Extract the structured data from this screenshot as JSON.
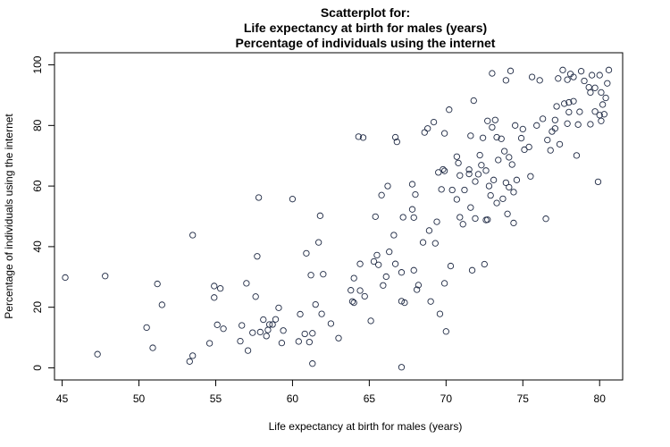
{
  "chart_data": {
    "type": "scatter",
    "title_lines": [
      "Scatterplot for:",
      "Life expectancy at birth for males (years)",
      "Percentage of individuals using the internet"
    ],
    "xlabel": "Life expectancy at birth for males (years)",
    "ylabel": "Percentage of individuals using the internet",
    "xlim": [
      44.5,
      81.5
    ],
    "ylim": [
      -4,
      104
    ],
    "xticks": [
      45,
      50,
      55,
      60,
      65,
      70,
      75,
      80
    ],
    "yticks": [
      0,
      20,
      40,
      60,
      80,
      100
    ],
    "grid": false,
    "legend": "none",
    "marker": "open-circle",
    "marker_color": "#1f2a44",
    "points": [
      [
        45.2,
        29.8
      ],
      [
        47.3,
        4.5
      ],
      [
        47.8,
        30.3
      ],
      [
        50.5,
        13.3
      ],
      [
        50.9,
        6.6
      ],
      [
        51.2,
        27.7
      ],
      [
        51.5,
        20.8
      ],
      [
        53.3,
        2.1
      ],
      [
        53.5,
        4.0
      ],
      [
        53.5,
        43.8
      ],
      [
        54.6,
        8.1
      ],
      [
        54.9,
        23.2
      ],
      [
        54.9,
        27.0
      ],
      [
        55.1,
        14.2
      ],
      [
        55.3,
        26.2
      ],
      [
        55.5,
        12.9
      ],
      [
        56.6,
        8.8
      ],
      [
        56.7,
        14.0
      ],
      [
        57.0,
        27.9
      ],
      [
        57.1,
        5.7
      ],
      [
        57.4,
        11.6
      ],
      [
        57.6,
        23.5
      ],
      [
        57.7,
        36.8
      ],
      [
        57.8,
        56.2
      ],
      [
        57.9,
        11.8
      ],
      [
        58.1,
        15.9
      ],
      [
        58.3,
        10.5
      ],
      [
        58.4,
        12.5
      ],
      [
        58.5,
        14.3
      ],
      [
        58.7,
        14.3
      ],
      [
        58.9,
        16.0
      ],
      [
        59.1,
        19.8
      ],
      [
        59.3,
        8.2
      ],
      [
        59.4,
        12.3
      ],
      [
        60.0,
        55.7
      ],
      [
        60.4,
        8.7
      ],
      [
        60.5,
        17.7
      ],
      [
        60.8,
        11.2
      ],
      [
        60.9,
        37.8
      ],
      [
        61.1,
        8.5
      ],
      [
        61.2,
        30.6
      ],
      [
        61.3,
        1.4
      ],
      [
        61.3,
        11.4
      ],
      [
        61.5,
        20.9
      ],
      [
        61.7,
        41.4
      ],
      [
        61.8,
        50.2
      ],
      [
        61.9,
        17.8
      ],
      [
        62.0,
        30.9
      ],
      [
        62.5,
        14.6
      ],
      [
        63.0,
        9.8
      ],
      [
        63.8,
        25.6
      ],
      [
        63.9,
        21.9
      ],
      [
        64.0,
        29.6
      ],
      [
        64.0,
        21.5
      ],
      [
        64.3,
        76.3
      ],
      [
        64.4,
        25.5
      ],
      [
        64.4,
        34.3
      ],
      [
        64.6,
        76.0
      ],
      [
        64.7,
        23.6
      ],
      [
        65.1,
        15.5
      ],
      [
        65.3,
        35.1
      ],
      [
        65.4,
        49.9
      ],
      [
        65.5,
        37.2
      ],
      [
        65.6,
        34.0
      ],
      [
        65.8,
        57.0
      ],
      [
        65.9,
        27.2
      ],
      [
        66.1,
        30.1
      ],
      [
        66.2,
        60.0
      ],
      [
        66.3,
        38.3
      ],
      [
        66.6,
        43.8
      ],
      [
        66.7,
        34.3
      ],
      [
        66.7,
        76.1
      ],
      [
        66.8,
        74.6
      ],
      [
        67.1,
        22.0
      ],
      [
        67.1,
        0.2
      ],
      [
        67.1,
        31.5
      ],
      [
        67.2,
        49.7
      ],
      [
        67.3,
        21.5
      ],
      [
        67.8,
        60.6
      ],
      [
        67.8,
        52.3
      ],
      [
        67.9,
        49.6
      ],
      [
        67.9,
        32.2
      ],
      [
        68.0,
        57.2
      ],
      [
        68.1,
        25.8
      ],
      [
        68.2,
        27.3
      ],
      [
        68.5,
        41.4
      ],
      [
        68.6,
        77.7
      ],
      [
        68.8,
        79.0
      ],
      [
        68.9,
        45.3
      ],
      [
        69.0,
        21.9
      ],
      [
        69.2,
        81.1
      ],
      [
        69.3,
        41.1
      ],
      [
        69.4,
        48.2
      ],
      [
        69.5,
        64.5
      ],
      [
        69.6,
        17.8
      ],
      [
        69.7,
        58.9
      ],
      [
        69.8,
        65.5
      ],
      [
        69.9,
        65.0
      ],
      [
        69.9,
        27.9
      ],
      [
        69.9,
        77.4
      ],
      [
        70.0,
        12.0
      ],
      [
        70.2,
        85.2
      ],
      [
        70.3,
        33.6
      ],
      [
        70.4,
        58.7
      ],
      [
        70.7,
        55.6
      ],
      [
        70.7,
        69.7
      ],
      [
        70.8,
        67.6
      ],
      [
        70.9,
        63.5
      ],
      [
        70.9,
        49.7
      ],
      [
        71.1,
        47.4
      ],
      [
        71.2,
        58.7
      ],
      [
        71.5,
        64.0
      ],
      [
        71.5,
        65.4
      ],
      [
        71.6,
        52.9
      ],
      [
        71.6,
        76.6
      ],
      [
        71.7,
        32.2
      ],
      [
        71.8,
        88.2
      ],
      [
        71.9,
        61.5
      ],
      [
        71.9,
        49.3
      ],
      [
        72.1,
        63.9
      ],
      [
        72.2,
        70.2
      ],
      [
        72.3,
        66.9
      ],
      [
        72.4,
        75.9
      ],
      [
        72.5,
        34.2
      ],
      [
        72.6,
        48.8
      ],
      [
        72.6,
        65.1
      ],
      [
        72.7,
        81.5
      ],
      [
        72.7,
        48.9
      ],
      [
        72.8,
        60.0
      ],
      [
        72.9,
        56.9
      ],
      [
        73.0,
        97.2
      ],
      [
        73.0,
        79.4
      ],
      [
        73.1,
        62.0
      ],
      [
        73.2,
        81.8
      ],
      [
        73.3,
        76.1
      ],
      [
        73.3,
        54.4
      ],
      [
        73.4,
        68.6
      ],
      [
        73.6,
        75.6
      ],
      [
        73.7,
        55.8
      ],
      [
        73.8,
        71.5
      ],
      [
        73.9,
        94.9
      ],
      [
        73.9,
        61.1
      ],
      [
        74.0,
        50.8
      ],
      [
        74.1,
        59.6
      ],
      [
        74.1,
        69.5
      ],
      [
        74.2,
        98.0
      ],
      [
        74.3,
        67.1
      ],
      [
        74.4,
        47.8
      ],
      [
        74.4,
        58.0
      ],
      [
        74.5,
        80.0
      ],
      [
        74.6,
        62.0
      ],
      [
        74.9,
        75.8
      ],
      [
        75.0,
        78.8
      ],
      [
        75.1,
        72.0
      ],
      [
        75.4,
        72.9
      ],
      [
        75.5,
        63.2
      ],
      [
        75.6,
        96.0
      ],
      [
        75.9,
        80.0
      ],
      [
        76.1,
        94.9
      ],
      [
        76.3,
        82.2
      ],
      [
        76.5,
        49.2
      ],
      [
        76.6,
        75.2
      ],
      [
        76.8,
        71.8
      ],
      [
        76.9,
        78.0
      ],
      [
        77.1,
        79.0
      ],
      [
        77.1,
        81.8
      ],
      [
        77.2,
        86.3
      ],
      [
        77.3,
        95.5
      ],
      [
        77.4,
        73.8
      ],
      [
        77.6,
        98.3
      ],
      [
        77.7,
        87.2
      ],
      [
        77.9,
        80.6
      ],
      [
        77.9,
        95.1
      ],
      [
        78.0,
        84.4
      ],
      [
        78.0,
        87.6
      ],
      [
        78.1,
        97.0
      ],
      [
        78.3,
        96.0
      ],
      [
        78.3,
        88.0
      ],
      [
        78.5,
        70.1
      ],
      [
        78.6,
        80.3
      ],
      [
        78.7,
        84.5
      ],
      [
        78.8,
        97.9
      ],
      [
        79.0,
        94.7
      ],
      [
        79.3,
        92.6
      ],
      [
        79.4,
        90.9
      ],
      [
        79.4,
        80.4
      ],
      [
        79.5,
        96.6
      ],
      [
        79.7,
        84.6
      ],
      [
        79.7,
        92.4
      ],
      [
        79.9,
        61.4
      ],
      [
        80.0,
        83.4
      ],
      [
        80.0,
        96.6
      ],
      [
        80.1,
        81.5
      ],
      [
        80.1,
        90.9
      ],
      [
        80.2,
        86.9
      ],
      [
        80.3,
        83.7
      ],
      [
        80.4,
        89.1
      ],
      [
        80.5,
        93.9
      ],
      [
        80.6,
        98.3
      ]
    ]
  }
}
